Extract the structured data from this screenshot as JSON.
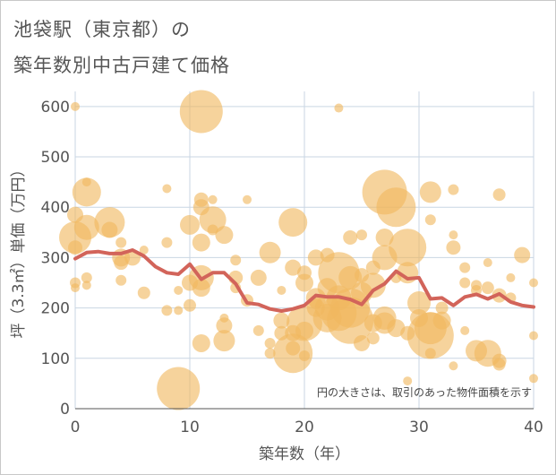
{
  "title_line1": "池袋駅（東京都）の",
  "title_line2": "築年数別中古戸建て価格",
  "chart_data": {
    "type": "scatter",
    "xlabel": "築年数（年）",
    "ylabel": "坪（3.3㎡）単価（万円）",
    "xlim": [
      0,
      40
    ],
    "ylim": [
      0,
      630
    ],
    "xticks": [
      0,
      10,
      20,
      30,
      40
    ],
    "yticks": [
      0,
      100,
      200,
      300,
      400,
      500,
      600
    ],
    "grid": true,
    "annotation": "円の大きさは、取引のあった物件面積を示す",
    "bubble_color": "#f0b860",
    "line_color": "#d2645a",
    "bubbles": [
      {
        "x": 0,
        "y": 600,
        "r": 5
      },
      {
        "x": 0,
        "y": 385,
        "r": 9
      },
      {
        "x": 0,
        "y": 340,
        "r": 18
      },
      {
        "x": 0,
        "y": 320,
        "r": 8
      },
      {
        "x": 0,
        "y": 250,
        "r": 6
      },
      {
        "x": 0,
        "y": 240,
        "r": 5
      },
      {
        "x": 1,
        "y": 450,
        "r": 5
      },
      {
        "x": 1,
        "y": 430,
        "r": 16
      },
      {
        "x": 1,
        "y": 360,
        "r": 14
      },
      {
        "x": 1,
        "y": 260,
        "r": 6
      },
      {
        "x": 1,
        "y": 245,
        "r": 5
      },
      {
        "x": 3,
        "y": 370,
        "r": 17
      },
      {
        "x": 3,
        "y": 355,
        "r": 9
      },
      {
        "x": 4,
        "y": 330,
        "r": 6
      },
      {
        "x": 4,
        "y": 300,
        "r": 10
      },
      {
        "x": 4,
        "y": 290,
        "r": 8
      },
      {
        "x": 4,
        "y": 255,
        "r": 6
      },
      {
        "x": 5,
        "y": 300,
        "r": 9
      },
      {
        "x": 6,
        "y": 315,
        "r": 5
      },
      {
        "x": 6,
        "y": 230,
        "r": 7
      },
      {
        "x": 8,
        "y": 437,
        "r": 5
      },
      {
        "x": 8,
        "y": 330,
        "r": 6
      },
      {
        "x": 8,
        "y": 195,
        "r": 6
      },
      {
        "x": 9,
        "y": 235,
        "r": 5
      },
      {
        "x": 9,
        "y": 195,
        "r": 5
      },
      {
        "x": 9,
        "y": 40,
        "r": 24
      },
      {
        "x": 10,
        "y": 365,
        "r": 11
      },
      {
        "x": 10,
        "y": 250,
        "r": 9
      },
      {
        "x": 10,
        "y": 205,
        "r": 7
      },
      {
        "x": 11,
        "y": 590,
        "r": 24
      },
      {
        "x": 11,
        "y": 415,
        "r": 8
      },
      {
        "x": 11,
        "y": 400,
        "r": 9
      },
      {
        "x": 11,
        "y": 330,
        "r": 10
      },
      {
        "x": 11,
        "y": 260,
        "r": 14
      },
      {
        "x": 11,
        "y": 240,
        "r": 10
      },
      {
        "x": 11,
        "y": 130,
        "r": 10
      },
      {
        "x": 12,
        "y": 415,
        "r": 5
      },
      {
        "x": 12,
        "y": 375,
        "r": 15
      },
      {
        "x": 12,
        "y": 355,
        "r": 6
      },
      {
        "x": 13,
        "y": 345,
        "r": 10
      },
      {
        "x": 13,
        "y": 180,
        "r": 5
      },
      {
        "x": 13,
        "y": 165,
        "r": 9
      },
      {
        "x": 13,
        "y": 135,
        "r": 12
      },
      {
        "x": 14,
        "y": 295,
        "r": 6
      },
      {
        "x": 14,
        "y": 260,
        "r": 8
      },
      {
        "x": 14,
        "y": 240,
        "r": 6
      },
      {
        "x": 15,
        "y": 415,
        "r": 5
      },
      {
        "x": 15,
        "y": 215,
        "r": 7
      },
      {
        "x": 16,
        "y": 260,
        "r": 9
      },
      {
        "x": 16,
        "y": 155,
        "r": 6
      },
      {
        "x": 17,
        "y": 310,
        "r": 12
      },
      {
        "x": 17,
        "y": 130,
        "r": 6
      },
      {
        "x": 17,
        "y": 110,
        "r": 6
      },
      {
        "x": 18,
        "y": 235,
        "r": 5
      },
      {
        "x": 18,
        "y": 175,
        "r": 9
      },
      {
        "x": 18,
        "y": 150,
        "r": 8
      },
      {
        "x": 19,
        "y": 370,
        "r": 16
      },
      {
        "x": 19,
        "y": 280,
        "r": 9
      },
      {
        "x": 19,
        "y": 150,
        "r": 9
      },
      {
        "x": 19,
        "y": 120,
        "r": 8
      },
      {
        "x": 19,
        "y": 110,
        "r": 22
      },
      {
        "x": 20,
        "y": 270,
        "r": 8
      },
      {
        "x": 20,
        "y": 250,
        "r": 10
      },
      {
        "x": 20,
        "y": 170,
        "r": 20
      },
      {
        "x": 20,
        "y": 155,
        "r": 10
      },
      {
        "x": 20,
        "y": 105,
        "r": 6
      },
      {
        "x": 21,
        "y": 300,
        "r": 9
      },
      {
        "x": 21,
        "y": 220,
        "r": 11
      },
      {
        "x": 21,
        "y": 210,
        "r": 7
      },
      {
        "x": 21,
        "y": 200,
        "r": 10
      },
      {
        "x": 22,
        "y": 305,
        "r": 8
      },
      {
        "x": 22,
        "y": 240,
        "r": 11
      },
      {
        "x": 22,
        "y": 200,
        "r": 14
      },
      {
        "x": 22,
        "y": 180,
        "r": 16
      },
      {
        "x": 23,
        "y": 597,
        "r": 5
      },
      {
        "x": 23,
        "y": 270,
        "r": 23
      },
      {
        "x": 23,
        "y": 220,
        "r": 14
      },
      {
        "x": 23,
        "y": 190,
        "r": 20
      },
      {
        "x": 24,
        "y": 340,
        "r": 8
      },
      {
        "x": 24,
        "y": 260,
        "r": 13
      },
      {
        "x": 24,
        "y": 200,
        "r": 22
      },
      {
        "x": 24,
        "y": 175,
        "r": 26
      },
      {
        "x": 25,
        "y": 345,
        "r": 6
      },
      {
        "x": 25,
        "y": 265,
        "r": 8
      },
      {
        "x": 25,
        "y": 230,
        "r": 12
      },
      {
        "x": 25,
        "y": 130,
        "r": 9
      },
      {
        "x": 26,
        "y": 280,
        "r": 8
      },
      {
        "x": 26,
        "y": 245,
        "r": 14
      },
      {
        "x": 26,
        "y": 170,
        "r": 10
      },
      {
        "x": 26,
        "y": 140,
        "r": 7
      },
      {
        "x": 27,
        "y": 430,
        "r": 25
      },
      {
        "x": 27,
        "y": 340,
        "r": 10
      },
      {
        "x": 27,
        "y": 300,
        "r": 14
      },
      {
        "x": 27,
        "y": 180,
        "r": 13
      },
      {
        "x": 27,
        "y": 170,
        "r": 12
      },
      {
        "x": 28,
        "y": 400,
        "r": 22
      },
      {
        "x": 28,
        "y": 260,
        "r": 6
      },
      {
        "x": 28,
        "y": 160,
        "r": 10
      },
      {
        "x": 29,
        "y": 320,
        "r": 21
      },
      {
        "x": 29,
        "y": 270,
        "r": 12
      },
      {
        "x": 29,
        "y": 150,
        "r": 8
      },
      {
        "x": 29,
        "y": 55,
        "r": 5
      },
      {
        "x": 30,
        "y": 210,
        "r": 13
      },
      {
        "x": 30,
        "y": 180,
        "r": 10
      },
      {
        "x": 31,
        "y": 430,
        "r": 12
      },
      {
        "x": 31,
        "y": 375,
        "r": 6
      },
      {
        "x": 31,
        "y": 160,
        "r": 18
      },
      {
        "x": 31,
        "y": 145,
        "r": 26
      },
      {
        "x": 31,
        "y": 110,
        "r": 6
      },
      {
        "x": 32,
        "y": 200,
        "r": 7
      },
      {
        "x": 32,
        "y": 175,
        "r": 10
      },
      {
        "x": 33,
        "y": 435,
        "r": 6
      },
      {
        "x": 33,
        "y": 345,
        "r": 5
      },
      {
        "x": 33,
        "y": 320,
        "r": 8
      },
      {
        "x": 33,
        "y": 85,
        "r": 5
      },
      {
        "x": 34,
        "y": 280,
        "r": 6
      },
      {
        "x": 34,
        "y": 250,
        "r": 6
      },
      {
        "x": 34,
        "y": 155,
        "r": 5
      },
      {
        "x": 35,
        "y": 245,
        "r": 6
      },
      {
        "x": 35,
        "y": 235,
        "r": 6
      },
      {
        "x": 35,
        "y": 115,
        "r": 12
      },
      {
        "x": 36,
        "y": 290,
        "r": 5
      },
      {
        "x": 36,
        "y": 240,
        "r": 7
      },
      {
        "x": 36,
        "y": 110,
        "r": 15
      },
      {
        "x": 37,
        "y": 425,
        "r": 7
      },
      {
        "x": 37,
        "y": 225,
        "r": 8
      },
      {
        "x": 37,
        "y": 95,
        "r": 8
      },
      {
        "x": 37,
        "y": 88,
        "r": 7
      },
      {
        "x": 38,
        "y": 260,
        "r": 5
      },
      {
        "x": 38,
        "y": 220,
        "r": 6
      },
      {
        "x": 39,
        "y": 305,
        "r": 9
      },
      {
        "x": 40,
        "y": 250,
        "r": 5
      },
      {
        "x": 40,
        "y": 145,
        "r": 5
      },
      {
        "x": 40,
        "y": 60,
        "r": 5
      }
    ],
    "series": [
      {
        "x": [
          0,
          1,
          2,
          3,
          4,
          5,
          6,
          7,
          8,
          9,
          10,
          11,
          12,
          13,
          14,
          15,
          16,
          17,
          18,
          19,
          20,
          21,
          22,
          23,
          24,
          25,
          26,
          27,
          28,
          29,
          30,
          31,
          32,
          33,
          34,
          35,
          36,
          37,
          38,
          39,
          40
        ],
        "values": [
          298,
          310,
          312,
          308,
          308,
          315,
          303,
          282,
          270,
          267,
          287,
          257,
          270,
          270,
          248,
          210,
          207,
          198,
          194,
          198,
          205,
          225,
          222,
          222,
          217,
          207,
          235,
          248,
          273,
          258,
          260,
          218,
          220,
          205,
          222,
          227,
          218,
          228,
          212,
          205,
          202
        ]
      }
    ]
  }
}
